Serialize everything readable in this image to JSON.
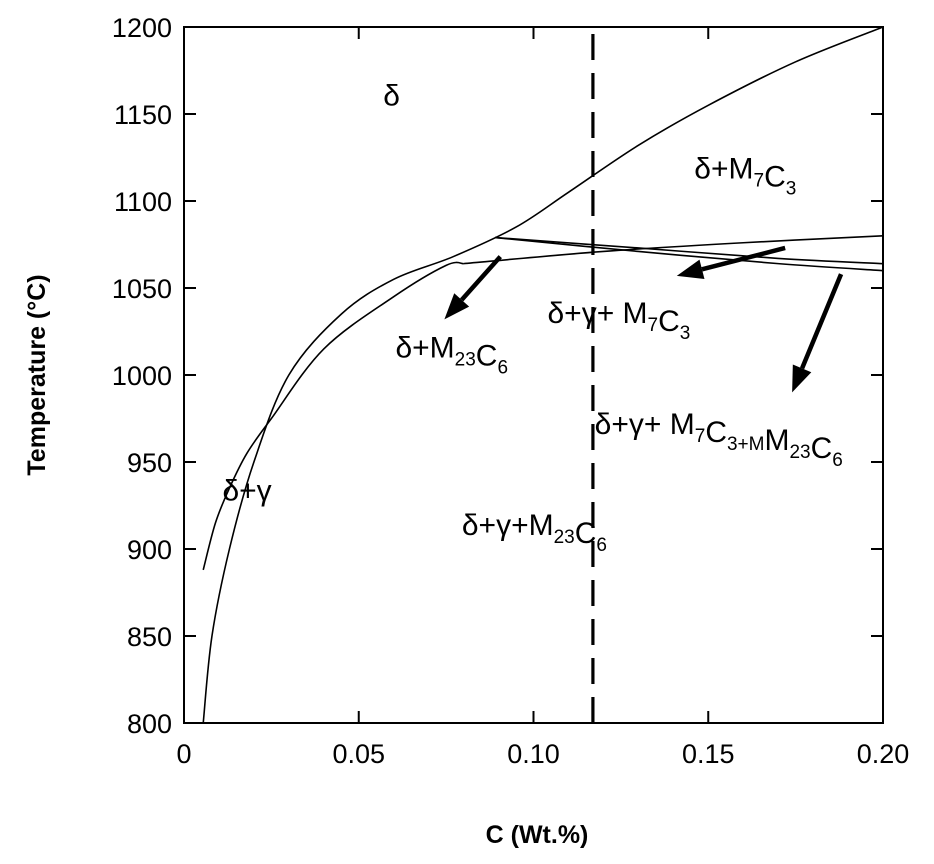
{
  "chart_data": {
    "type": "line",
    "title": "",
    "xlabel": "C (Wt.%)",
    "ylabel": "Temperature (°C)",
    "xlim": [
      0,
      0.2
    ],
    "ylim": [
      800,
      1200
    ],
    "x_ticks": [
      {
        "value": 0,
        "label": "0"
      },
      {
        "value": 0.05,
        "label": "0.05"
      },
      {
        "value": 0.1,
        "label": "0.10"
      },
      {
        "value": 0.15,
        "label": "0.15"
      },
      {
        "value": 0.2,
        "label": "0.20"
      }
    ],
    "y_ticks": [
      {
        "value": 800,
        "label": "800"
      },
      {
        "value": 850,
        "label": "850"
      },
      {
        "value": 900,
        "label": "900"
      },
      {
        "value": 950,
        "label": "950"
      },
      {
        "value": 1000,
        "label": "1000"
      },
      {
        "value": 1050,
        "label": "1050"
      },
      {
        "value": 1100,
        "label": "1100"
      },
      {
        "value": 1150,
        "label": "1150"
      },
      {
        "value": 1200,
        "label": "1200"
      }
    ],
    "grid": false,
    "series": [
      {
        "points": [
          [
            0.0055,
            800
          ],
          [
            0.008,
            850
          ],
          [
            0.013,
            900
          ],
          [
            0.02,
            950
          ],
          [
            0.03,
            1000
          ],
          [
            0.045,
            1035
          ],
          [
            0.06,
            1055
          ],
          [
            0.077,
            1068
          ],
          [
            0.095,
            1085
          ],
          [
            0.11,
            1105
          ],
          [
            0.13,
            1132
          ],
          [
            0.15,
            1155
          ],
          [
            0.175,
            1180
          ],
          [
            0.2,
            1200
          ]
        ]
      },
      {
        "points": [
          [
            0.0055,
            888
          ],
          [
            0.009,
            915
          ],
          [
            0.013,
            935
          ],
          [
            0.018,
            955
          ],
          [
            0.025,
            975
          ],
          [
            0.04,
            1015
          ],
          [
            0.06,
            1045
          ],
          [
            0.075,
            1063
          ],
          [
            0.08,
            1064
          ]
        ]
      },
      {
        "points": [
          [
            0.08,
            1064
          ],
          [
            0.12,
            1071
          ],
          [
            0.16,
            1076
          ],
          [
            0.2,
            1080
          ]
        ]
      },
      {
        "points": [
          [
            0.089,
            1079
          ],
          [
            0.13,
            1073
          ],
          [
            0.17,
            1067
          ],
          [
            0.2,
            1064
          ]
        ]
      },
      {
        "points": [
          [
            0.089,
            1079
          ],
          [
            0.13,
            1071
          ],
          [
            0.17,
            1064
          ],
          [
            0.2,
            1060
          ]
        ]
      }
    ],
    "vertical_dashed_line": {
      "x": 0.117,
      "from_y": 800,
      "to_y": 1200
    },
    "region_labels": [
      {
        "main": "δ",
        "x": 0.057,
        "y": 1155
      },
      {
        "main": "δ+M",
        "sub1": "7",
        "main2": "C",
        "sub2": "3",
        "x": 0.146,
        "y": 1113
      },
      {
        "main": "δ+γ+ M",
        "sub1": "7",
        "main2": "C",
        "sub2": "3",
        "x": 0.104,
        "y": 1030
      },
      {
        "main": "δ+M",
        "sub1": "23",
        "main2": "C",
        "sub2": "6",
        "x": 0.0605,
        "y": 1010
      },
      {
        "main": "δ+γ+ M",
        "sub1": "7",
        "main2": "C",
        "sub2": "3+M",
        "main3": "",
        "sub3": "",
        "x": 0.1175,
        "y": 966
      },
      {
        "main": "δ+γ",
        "x": 0.011,
        "y": 928
      },
      {
        "main": "δ+γ+M",
        "sub1": "23",
        "main2": "C",
        "sub2": "6",
        "x": 0.0795,
        "y": 908
      }
    ],
    "arrows": [
      {
        "from": [
          0.0905,
          1068
        ],
        "to": [
          0.0745,
          1032
        ]
      },
      {
        "from": [
          0.172,
          1073
        ],
        "to": [
          0.141,
          1057
        ]
      },
      {
        "from": [
          0.188,
          1058
        ],
        "to": [
          0.174,
          990
        ]
      }
    ]
  }
}
